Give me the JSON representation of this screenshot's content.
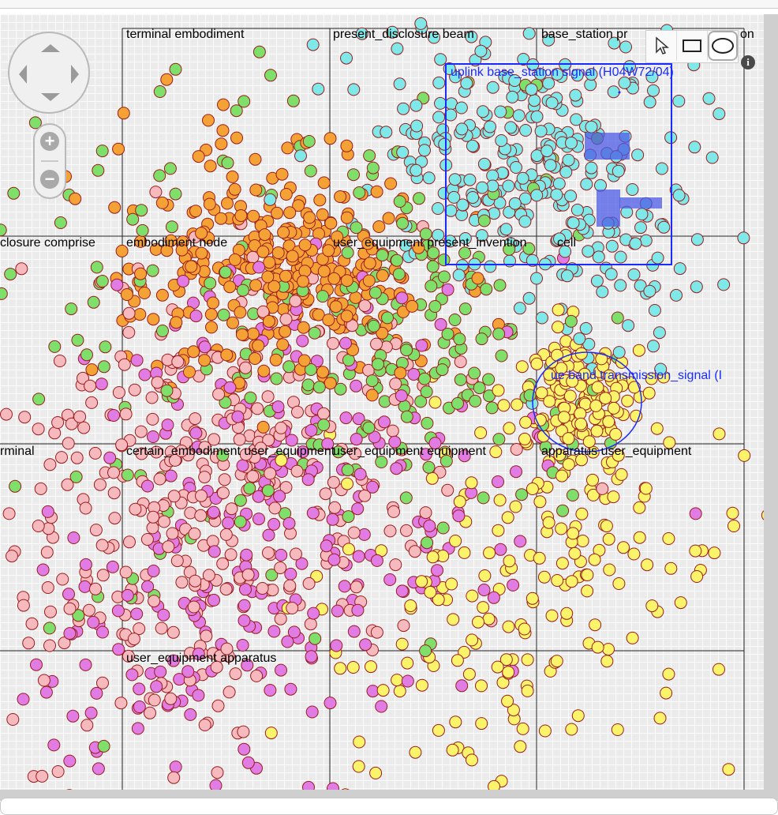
{
  "map": {
    "grid_labels": [
      "terminal embodiment",
      "present_disclosure beam",
      "base_station pr",
      "on",
      "closure comprise",
      "embodiment node",
      "user_equipment present_invention",
      "cell",
      "rminal",
      "certain_embodiment user_equipment",
      "user_equipment equipment",
      "apparatus user_equipment",
      "user_equipment apparatus"
    ],
    "selection_labels": [
      "uplink base_station signal (H04W72/04)",
      "ue band transmission_signal (I"
    ],
    "category_colors": {
      "cyan": "#7fe8e8",
      "orange": "#f4a136",
      "green": "#7ee06a",
      "pink": "#f5b9be",
      "violet": "#e07ce4",
      "yellow": "#fbf36a"
    },
    "point_stroke": "#9b1c1c",
    "selection_color": "#1a2bff"
  },
  "controls": {
    "pan_icons": [
      "arrow-up-icon",
      "arrow-down-icon",
      "arrow-left-icon",
      "arrow-right-icon"
    ],
    "zoom_in_glyph": "+",
    "zoom_out_glyph": "−",
    "tools": [
      "pointer-icon",
      "rectangle-select-icon",
      "ellipse-select-icon"
    ],
    "info_glyph": "i"
  }
}
